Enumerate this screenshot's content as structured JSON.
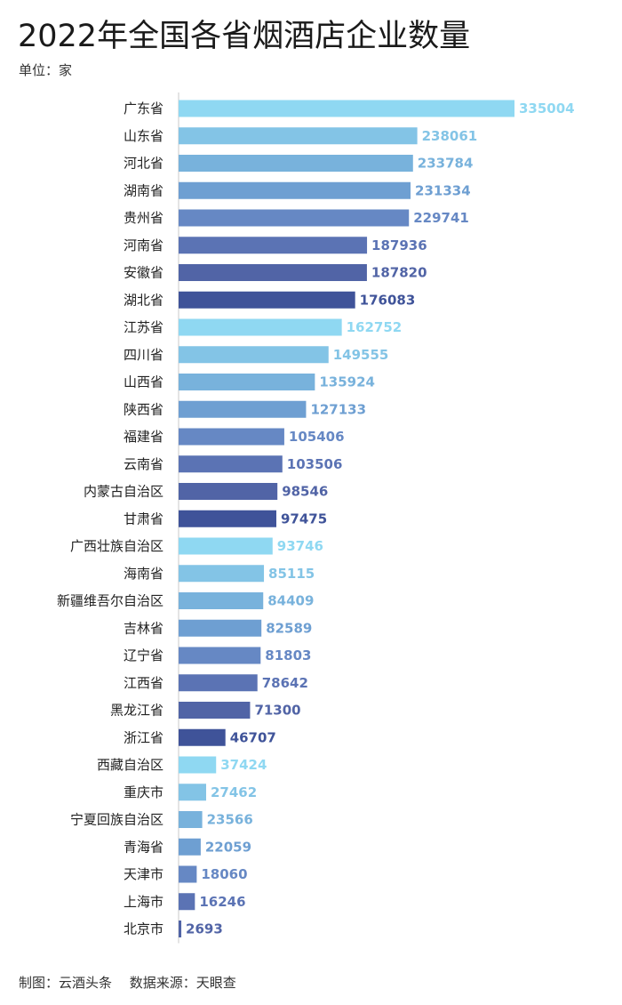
{
  "title": "2022年全国各省烟酒店企业数量",
  "unit_label": "单位：家",
  "footer": "制图：云酒头条　 数据来源：天眼查",
  "chart_data": {
    "type": "bar",
    "orientation": "horizontal",
    "title": "2022年全国各省烟酒店企业数量",
    "xlabel": "",
    "ylabel": "",
    "xlim": [
      0,
      335004
    ],
    "grid": false,
    "palette": [
      "#8fd8f2",
      "#83c4e6",
      "#78b2dc",
      "#6e9fd2",
      "#6688c4",
      "#5b73b4",
      "#5164a6",
      "#3f5399"
    ],
    "categories": [
      "广东省",
      "山东省",
      "河北省",
      "湖南省",
      "贵州省",
      "河南省",
      "安徽省",
      "湖北省",
      "江苏省",
      "四川省",
      "山西省",
      "陕西省",
      "福建省",
      "云南省",
      "内蒙古自治区",
      "甘肃省",
      "广西壮族自治区",
      "海南省",
      "新疆维吾尔自治区",
      "吉林省",
      "辽宁省",
      "江西省",
      "黑龙江省",
      "浙江省",
      "西藏自治区",
      "重庆市",
      "宁夏回族自治区",
      "青海省",
      "天津市",
      "上海市",
      "北京市"
    ],
    "values": [
      335004,
      238061,
      233784,
      231334,
      229741,
      187936,
      187820,
      176083,
      162752,
      149555,
      135924,
      127133,
      105406,
      103506,
      98546,
      97475,
      93746,
      85115,
      84409,
      82589,
      81803,
      78642,
      71300,
      46707,
      37424,
      27462,
      23566,
      22059,
      18060,
      16246,
      2693
    ]
  }
}
